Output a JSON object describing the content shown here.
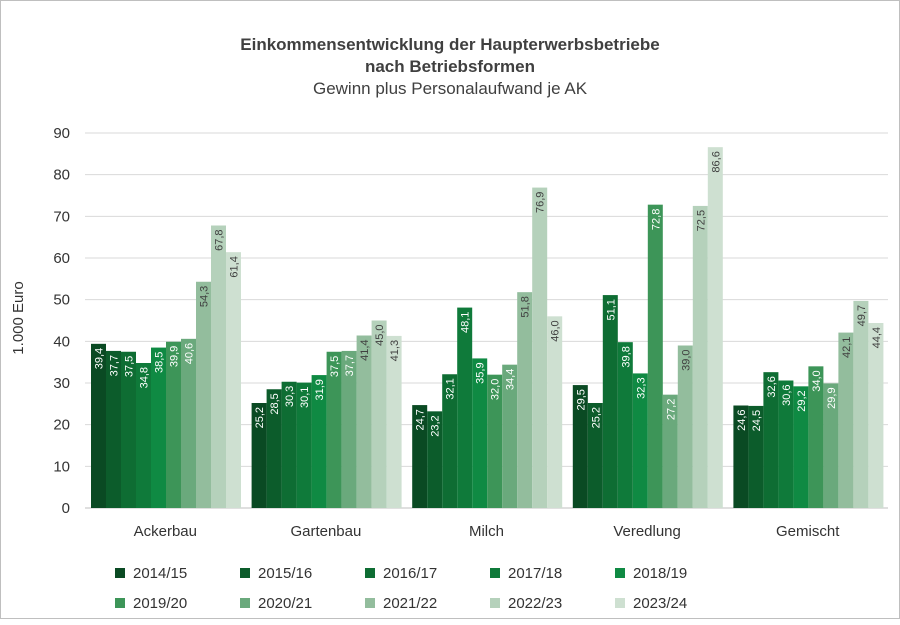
{
  "chart_data": {
    "type": "bar",
    "title": "Einkommensentwicklung der Haupterwerbsbetriebe",
    "title_line2": "nach Betriebsformen",
    "subtitle": "Gewinn plus Personalaufwand je AK",
    "ylabel": "1.000 Euro",
    "xlabel": "",
    "ylim": [
      0,
      90
    ],
    "yticks": [
      "0",
      "10",
      "20",
      "30",
      "40",
      "50",
      "60",
      "70",
      "80",
      "90"
    ],
    "grid": true,
    "legend_position": "bottom",
    "categories": [
      "Ackerbau",
      "Gartenbau",
      "Milch",
      "Veredlung",
      "Gemischt"
    ],
    "series": [
      {
        "name": "2014/15",
        "color": "#0a4a23",
        "values": [
          39.4,
          25.2,
          24.7,
          29.5,
          24.6
        ],
        "labels": [
          "39,4",
          "25,2",
          "24,7",
          "29,5",
          "24,6"
        ]
      },
      {
        "name": "2015/16",
        "color": "#0c5c2b",
        "values": [
          37.7,
          28.5,
          23.2,
          25.2,
          24.5
        ],
        "labels": [
          "37,7",
          "28,5",
          "23,2",
          "25,2",
          "24,5"
        ]
      },
      {
        "name": "2016/17",
        "color": "#0e6d33",
        "values": [
          37.5,
          30.3,
          32.1,
          51.1,
          32.6
        ],
        "labels": [
          "37,5",
          "30,3",
          "32,1",
          "51,1",
          "32,6"
        ]
      },
      {
        "name": "2017/18",
        "color": "#0f7a3a",
        "values": [
          34.8,
          30.1,
          48.1,
          39.8,
          30.6
        ],
        "labels": [
          "34,8",
          "30,1",
          "48,1",
          "39,8",
          "30,6"
        ]
      },
      {
        "name": "2018/19",
        "color": "#0f8a43",
        "values": [
          38.5,
          31.9,
          35.9,
          32.3,
          29.2
        ],
        "labels": [
          "38,5",
          "31,9",
          "35,9",
          "32,3",
          "29,2"
        ]
      },
      {
        "name": "2019/20",
        "color": "#3d9558",
        "values": [
          39.9,
          37.5,
          32.0,
          72.8,
          34.0
        ],
        "labels": [
          "39,9",
          "37,5",
          "32,0",
          "72,8",
          "34,0"
        ]
      },
      {
        "name": "2020/21",
        "color": "#6aa97c",
        "values": [
          40.6,
          37.7,
          34.4,
          27.2,
          29.9
        ],
        "labels": [
          "40,6",
          "37,7",
          "34,4",
          "27,2",
          "29,9"
        ]
      },
      {
        "name": "2021/22",
        "color": "#93bd9d",
        "values": [
          54.3,
          41.4,
          51.8,
          39.0,
          42.1
        ],
        "labels": [
          "54,3",
          "41,4",
          "51,8",
          "39,0",
          "42,1"
        ]
      },
      {
        "name": "2022/23",
        "color": "#b5d1bb",
        "values": [
          67.8,
          45.0,
          76.9,
          72.5,
          49.7
        ],
        "labels": [
          "67,8",
          "45,0",
          "76,9",
          "72,5",
          "49,7"
        ]
      },
      {
        "name": "2023/24",
        "color": "#cee0d1",
        "values": [
          61.4,
          41.3,
          46.0,
          86.6,
          44.4
        ],
        "labels": [
          "61,4",
          "41,3",
          "46,0",
          "86,6",
          "44,4"
        ]
      }
    ]
  },
  "style": {
    "grid_color": "#d9d9d9",
    "axis_color": "#bfbfbf",
    "label_dark_bar": "#ffffff",
    "label_light_bar": "#404040",
    "text_color": "#404040"
  }
}
